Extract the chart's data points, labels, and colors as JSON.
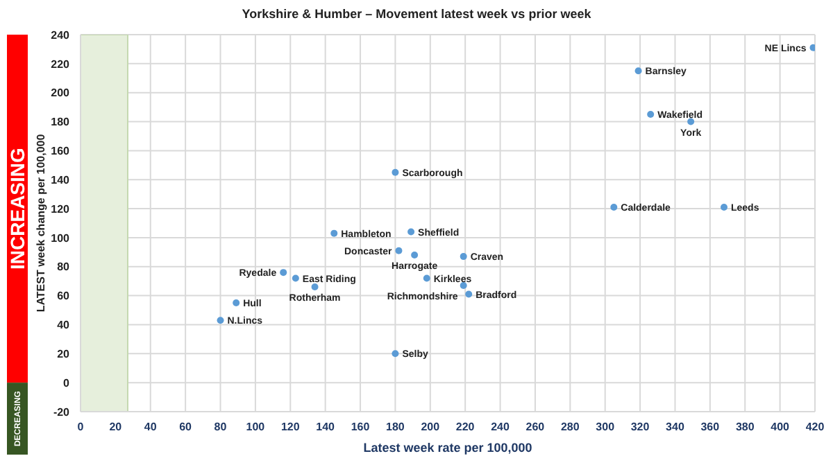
{
  "chart_data": {
    "type": "scatter",
    "title": "Yorkshire & Humber – Movement latest week vs prior week",
    "xlabel": "Latest week rate per 100,000",
    "ylabel": "LATEST week change per 100,000",
    "x": [
      419,
      319,
      326,
      349,
      180,
      305,
      368,
      145,
      189,
      182,
      191,
      219,
      116,
      123,
      198,
      219,
      222,
      134,
      89,
      80,
      180
    ],
    "values": [
      231,
      215,
      185,
      180,
      145,
      121,
      121,
      103,
      104,
      91,
      88,
      87,
      76,
      72,
      72,
      67,
      61,
      66,
      55,
      43,
      20
    ],
    "color": "#5b9bd5",
    "marker": "circle",
    "xlim": [
      0,
      420
    ],
    "xticks": [
      0,
      20,
      40,
      60,
      80,
      100,
      120,
      140,
      160,
      180,
      200,
      220,
      240,
      260,
      280,
      300,
      320,
      340,
      360,
      380,
      400,
      420
    ],
    "ylim": [
      -20,
      240
    ],
    "yticks": [
      -20,
      0,
      20,
      40,
      60,
      80,
      100,
      120,
      140,
      160,
      180,
      200,
      220,
      240
    ],
    "grid": true,
    "bands": [
      {
        "axis": "x",
        "from": 0,
        "to": 27,
        "color": "#e6efdc"
      }
    ],
    "annotations": [
      "INCREASING",
      "DECREASING",
      {
        "text": "NE Lincs",
        "x": 419,
        "y": 231
      },
      {
        "text": "Barnsley",
        "x": 319,
        "y": 215
      },
      {
        "text": "Wakefield",
        "x": 326,
        "y": 185
      },
      {
        "text": "York",
        "x": 349,
        "y": 180
      },
      {
        "text": "Scarborough",
        "x": 180,
        "y": 145
      },
      {
        "text": "Calderdale",
        "x": 305,
        "y": 121
      },
      {
        "text": "Leeds",
        "x": 368,
        "y": 121
      },
      {
        "text": "Hambleton",
        "x": 145,
        "y": 103
      },
      {
        "text": "Sheffield",
        "x": 189,
        "y": 104
      },
      {
        "text": "Doncaster",
        "x": 182,
        "y": 91
      },
      {
        "text": "Harrogate",
        "x": 191,
        "y": 88
      },
      {
        "text": "Craven",
        "x": 219,
        "y": 87
      },
      {
        "text": "Ryedale",
        "x": 116,
        "y": 76
      },
      {
        "text": "East Riding",
        "x": 123,
        "y": 72
      },
      {
        "text": "Kirklees",
        "x": 198,
        "y": 72
      },
      {
        "text": "Richmondshire",
        "x": 219,
        "y": 67
      },
      {
        "text": "Bradford",
        "x": 222,
        "y": 61
      },
      {
        "text": "Rotherham",
        "x": 134,
        "y": 66
      },
      {
        "text": "Hull",
        "x": 89,
        "y": 55
      },
      {
        "text": "N.Lincs",
        "x": 80,
        "y": 43
      },
      {
        "text": "Selby",
        "x": 180,
        "y": 20
      }
    ]
  }
}
